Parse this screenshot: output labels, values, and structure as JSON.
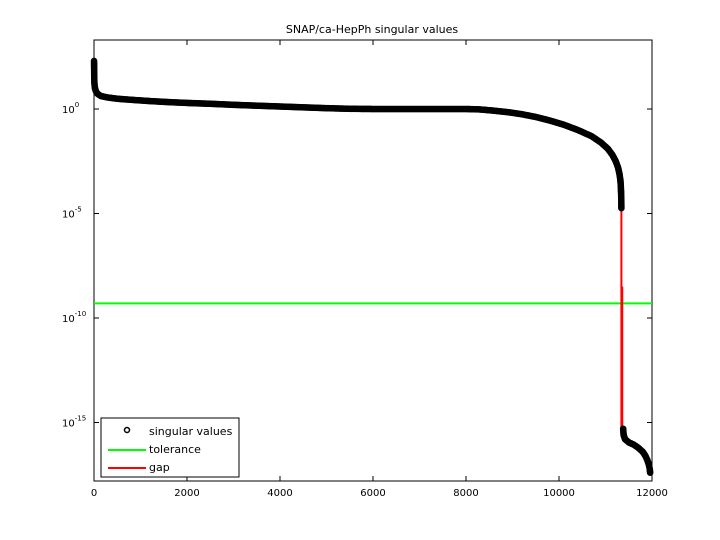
{
  "chart_data": {
    "type": "scatter",
    "title": "SNAP/ca-HepPh singular values",
    "xlabel": "",
    "ylabel": "",
    "xlim": [
      0,
      12000
    ],
    "ylim_log10": [
      -17.5,
      1.0
    ],
    "y_scale": "log",
    "grid": false,
    "legend_position": "bottom-left",
    "x_ticks": [
      "0",
      "2000",
      "4000",
      "6000",
      "8000",
      "10000",
      "12000"
    ],
    "y_ticks": [
      {
        "base": "10",
        "exp": "0"
      },
      {
        "base": "10",
        "exp": "-5"
      },
      {
        "base": "10",
        "exp": "-10"
      },
      {
        "base": "10",
        "exp": "-15"
      }
    ],
    "series": [
      {
        "name": "singular values",
        "style": "black circle markers",
        "color": "#000000",
        "points": [
          [
            1,
            2.3
          ],
          [
            5,
            1.5
          ],
          [
            10,
            1.2
          ],
          [
            20,
            1.0
          ],
          [
            40,
            0.85
          ],
          [
            80,
            0.72
          ],
          [
            150,
            0.62
          ],
          [
            300,
            0.55
          ],
          [
            500,
            0.49
          ],
          [
            800,
            0.44
          ],
          [
            1200,
            0.38
          ],
          [
            1600,
            0.33
          ],
          [
            2000,
            0.29
          ],
          [
            2500,
            0.25
          ],
          [
            3000,
            0.2
          ],
          [
            3500,
            0.16
          ],
          [
            4000,
            0.12
          ],
          [
            4500,
            0.08
          ],
          [
            5000,
            0.04
          ],
          [
            5500,
            0.01
          ],
          [
            6000,
            0.0
          ],
          [
            6500,
            0.0
          ],
          [
            7000,
            0.0
          ],
          [
            7500,
            0.0
          ],
          [
            8000,
            0.0
          ],
          [
            8300,
            -0.02
          ],
          [
            8600,
            -0.08
          ],
          [
            8900,
            -0.15
          ],
          [
            9200,
            -0.25
          ],
          [
            9500,
            -0.38
          ],
          [
            9800,
            -0.55
          ],
          [
            10100,
            -0.75
          ],
          [
            10400,
            -1.0
          ],
          [
            10700,
            -1.3
          ],
          [
            10900,
            -1.6
          ],
          [
            11050,
            -1.9
          ],
          [
            11150,
            -2.2
          ],
          [
            11220,
            -2.5
          ],
          [
            11270,
            -2.8
          ],
          [
            11300,
            -3.1
          ],
          [
            11320,
            -3.4
          ],
          [
            11330,
            -3.7
          ],
          [
            11335,
            -4.0
          ],
          [
            11340,
            -4.4
          ],
          [
            11342,
            -4.8
          ],
          [
            11380,
            -15.3
          ],
          [
            11390,
            -15.6
          ],
          [
            11420,
            -15.8
          ],
          [
            11500,
            -15.95
          ],
          [
            11600,
            -16.05
          ],
          [
            11700,
            -16.2
          ],
          [
            11800,
            -16.4
          ],
          [
            11860,
            -16.6
          ],
          [
            11900,
            -16.8
          ],
          [
            11930,
            -17.0
          ],
          [
            11950,
            -17.2
          ],
          [
            11960,
            -17.4
          ]
        ]
      },
      {
        "name": "tolerance",
        "style": "green line",
        "color": "#00ff00",
        "y_log10": -9.3
      },
      {
        "name": "gap",
        "style": "red line",
        "color": "#ff0000",
        "segments": [
          {
            "x": 11342,
            "y0_log10": -4.8,
            "y1_log10": -15.3
          },
          {
            "x": 11360,
            "y0_log10": -8.5,
            "y1_log10": -15.2
          }
        ]
      }
    ]
  }
}
